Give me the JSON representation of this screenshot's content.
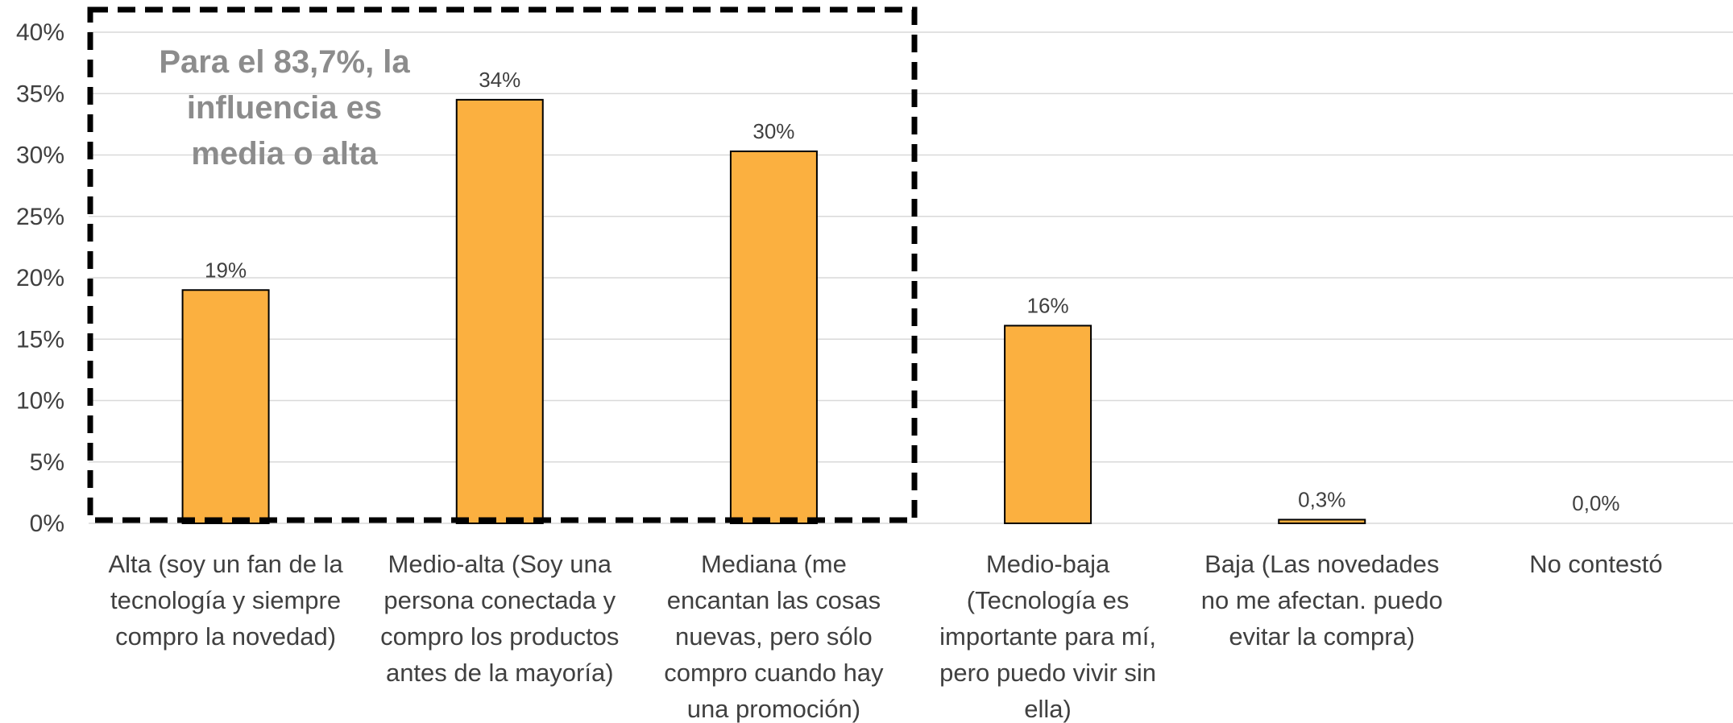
{
  "chart_data": {
    "type": "bar",
    "categories": [
      "Alta (soy un fan de la tecnología y siempre compro la novedad)",
      "Medio-alta (Soy una persona conectada y compro los productos antes de la mayoría)",
      "Mediana (me encantan las cosas nuevas, pero sólo compro cuando hay una promoción)",
      "Medio-baja (Tecnología es importante para mí, pero puedo vivir sin ella)",
      "Baja (Las novedades no me afectan. puedo evitar la compra)",
      "No contestó"
    ],
    "category_lines": [
      [
        "Alta (soy un fan de la",
        "tecnología y siempre",
        "compro la novedad)"
      ],
      [
        "Medio-alta (Soy una",
        "persona conectada y",
        "compro los productos",
        "antes de la mayoría)"
      ],
      [
        "Mediana (me",
        "encantan las cosas",
        "nuevas, pero sólo",
        "compro cuando hay",
        "una promoción)"
      ],
      [
        "Medio-baja",
        "(Tecnología es",
        "importante para mí,",
        "pero puedo vivir sin",
        "ella)"
      ],
      [
        "Baja (Las novedades",
        "no me afectan. puedo",
        "evitar la compra)"
      ],
      [
        "No contestó"
      ]
    ],
    "values": [
      19.0,
      34.5,
      30.3,
      16.1,
      0.3,
      0.0
    ],
    "data_labels": [
      "19%",
      "34%",
      "30%",
      "16%",
      "0,3%",
      "0,0%"
    ],
    "ylim": [
      0,
      40
    ],
    "yticks": [
      "0%",
      "5%",
      "10%",
      "15%",
      "20%",
      "25%",
      "30%",
      "35%",
      "40%"
    ],
    "grid": true,
    "bar_color": "#FBB040",
    "annotation": {
      "lines": [
        "Para el 83,7%, la",
        "influencia es",
        "media o alta"
      ],
      "color": "#8C8C8C"
    }
  }
}
